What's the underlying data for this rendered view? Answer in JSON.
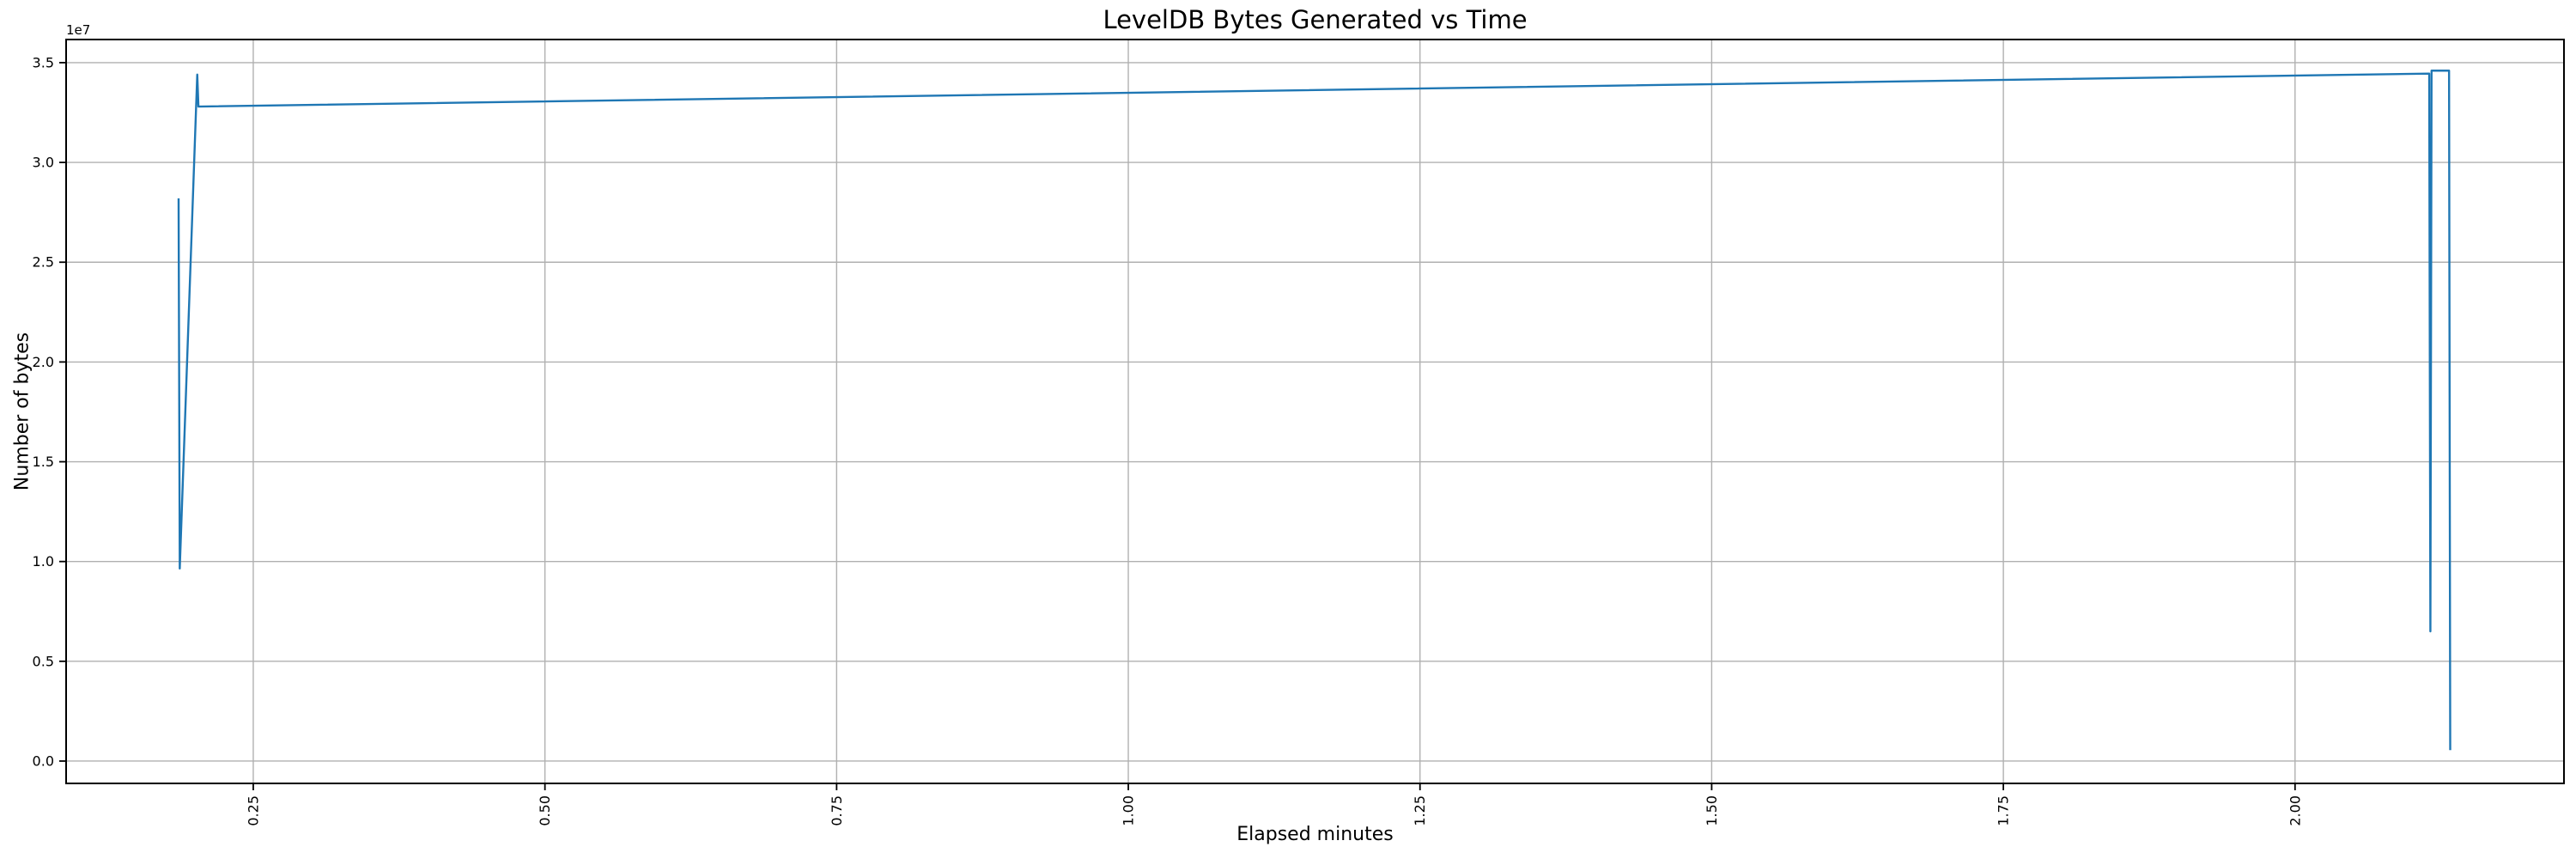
{
  "chart_data": {
    "type": "line",
    "title": "LevelDB Bytes Generated vs Time",
    "xlabel": "Elapsed minutes",
    "ylabel": "Number of bytes",
    "y_axis_offset_label": "1e7",
    "grid": true,
    "legend": "none",
    "line_color": "#1f77b4",
    "grid_color": "#b0b0b0",
    "spine_color": "#000000",
    "xlim": [
      0.0896,
      2.2305
    ],
    "ylim": [
      -1120000,
      36160000
    ],
    "xticks": {
      "values": [
        0.25,
        0.5,
        0.75,
        1.0,
        1.25,
        1.5,
        1.75,
        2.0
      ],
      "labels": [
        "0.25",
        "0.50",
        "0.75",
        "1.00",
        "1.25",
        "1.50",
        "1.75",
        "2.00"
      ],
      "rotation": 90
    },
    "yticks": {
      "values": [
        0,
        5000000,
        10000000,
        15000000,
        20000000,
        25000000,
        30000000,
        35000000
      ],
      "labels": [
        "0.0",
        "0.5",
        "1.0",
        "1.5",
        "2.0",
        "2.5",
        "3.0",
        "3.5"
      ]
    },
    "series": [
      {
        "name": "leveldb-bytes-generated",
        "points": [
          [
            0.186,
            28200000
          ],
          [
            0.187,
            9650000
          ],
          [
            0.202,
            34400000
          ],
          [
            0.203,
            32800000
          ],
          [
            2.115,
            34450000
          ],
          [
            2.116,
            6500000
          ],
          [
            2.117,
            34600000
          ],
          [
            2.132,
            34600000
          ],
          [
            2.133,
            550000
          ]
        ]
      }
    ]
  }
}
